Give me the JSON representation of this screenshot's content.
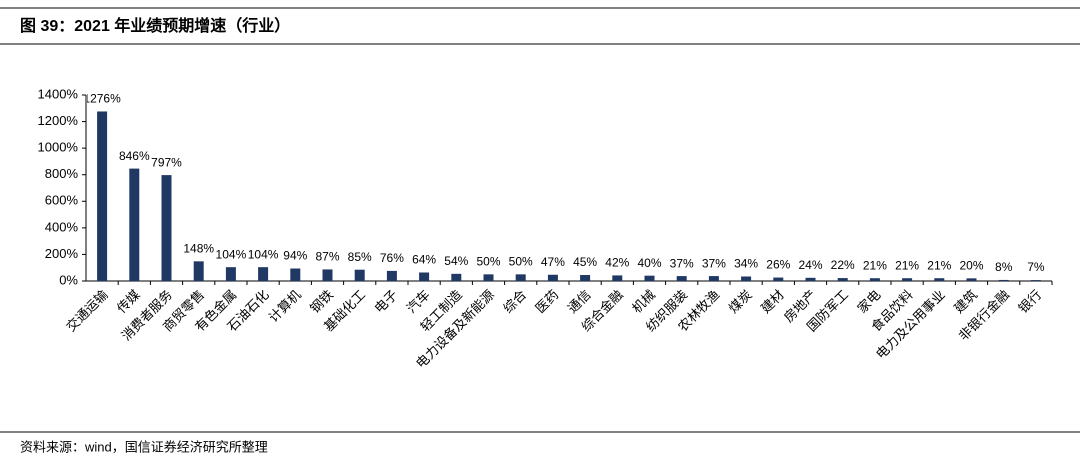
{
  "chart_data": {
    "type": "bar",
    "title": "图 39：2021 年业绩预期增速（行业）",
    "source": "资料来源：wind，国信证券经济研究所整理",
    "categories": [
      "交通运输",
      "传媒",
      "消费者服务",
      "商贸零售",
      "有色金属",
      "石油石化",
      "计算机",
      "钢铁",
      "基础化工",
      "电子",
      "汽车",
      "轻工制造",
      "电力设备及新能源",
      "综合",
      "医药",
      "通信",
      "综合金融",
      "机械",
      "纺织服装",
      "农林牧渔",
      "煤炭",
      "建材",
      "房地产",
      "国防军工",
      "家电",
      "食品饮料",
      "电力及公用事业",
      "建筑",
      "非银行金融",
      "银行"
    ],
    "values": [
      1276,
      846,
      797,
      148,
      104,
      104,
      94,
      87,
      85,
      76,
      64,
      54,
      50,
      50,
      47,
      45,
      42,
      40,
      37,
      37,
      34,
      26,
      24,
      22,
      21,
      21,
      21,
      20,
      8,
      7
    ],
    "value_labels": [
      "1276%",
      "846%",
      "797%",
      "148%",
      "104%",
      "104%",
      "94%",
      "87%",
      "85%",
      "76%",
      "64%",
      "54%",
      "50%",
      "50%",
      "47%",
      "45%",
      "42%",
      "40%",
      "37%",
      "37%",
      "34%",
      "26%",
      "24%",
      "22%",
      "21%",
      "21%",
      "21%",
      "20%",
      "8%",
      "7%"
    ],
    "color": "#1f3864",
    "ylim": [
      0,
      1400
    ],
    "yticks": [
      {
        "value": 0,
        "label": "0%"
      },
      {
        "value": 200,
        "label": "200%"
      },
      {
        "value": 400,
        "label": "400%"
      },
      {
        "value": 600,
        "label": "600%"
      },
      {
        "value": 800,
        "label": "800%"
      },
      {
        "value": 1000,
        "label": "1000%"
      },
      {
        "value": 1200,
        "label": "1200%"
      },
      {
        "value": 1400,
        "label": "1400%"
      }
    ],
    "grid": false
  }
}
